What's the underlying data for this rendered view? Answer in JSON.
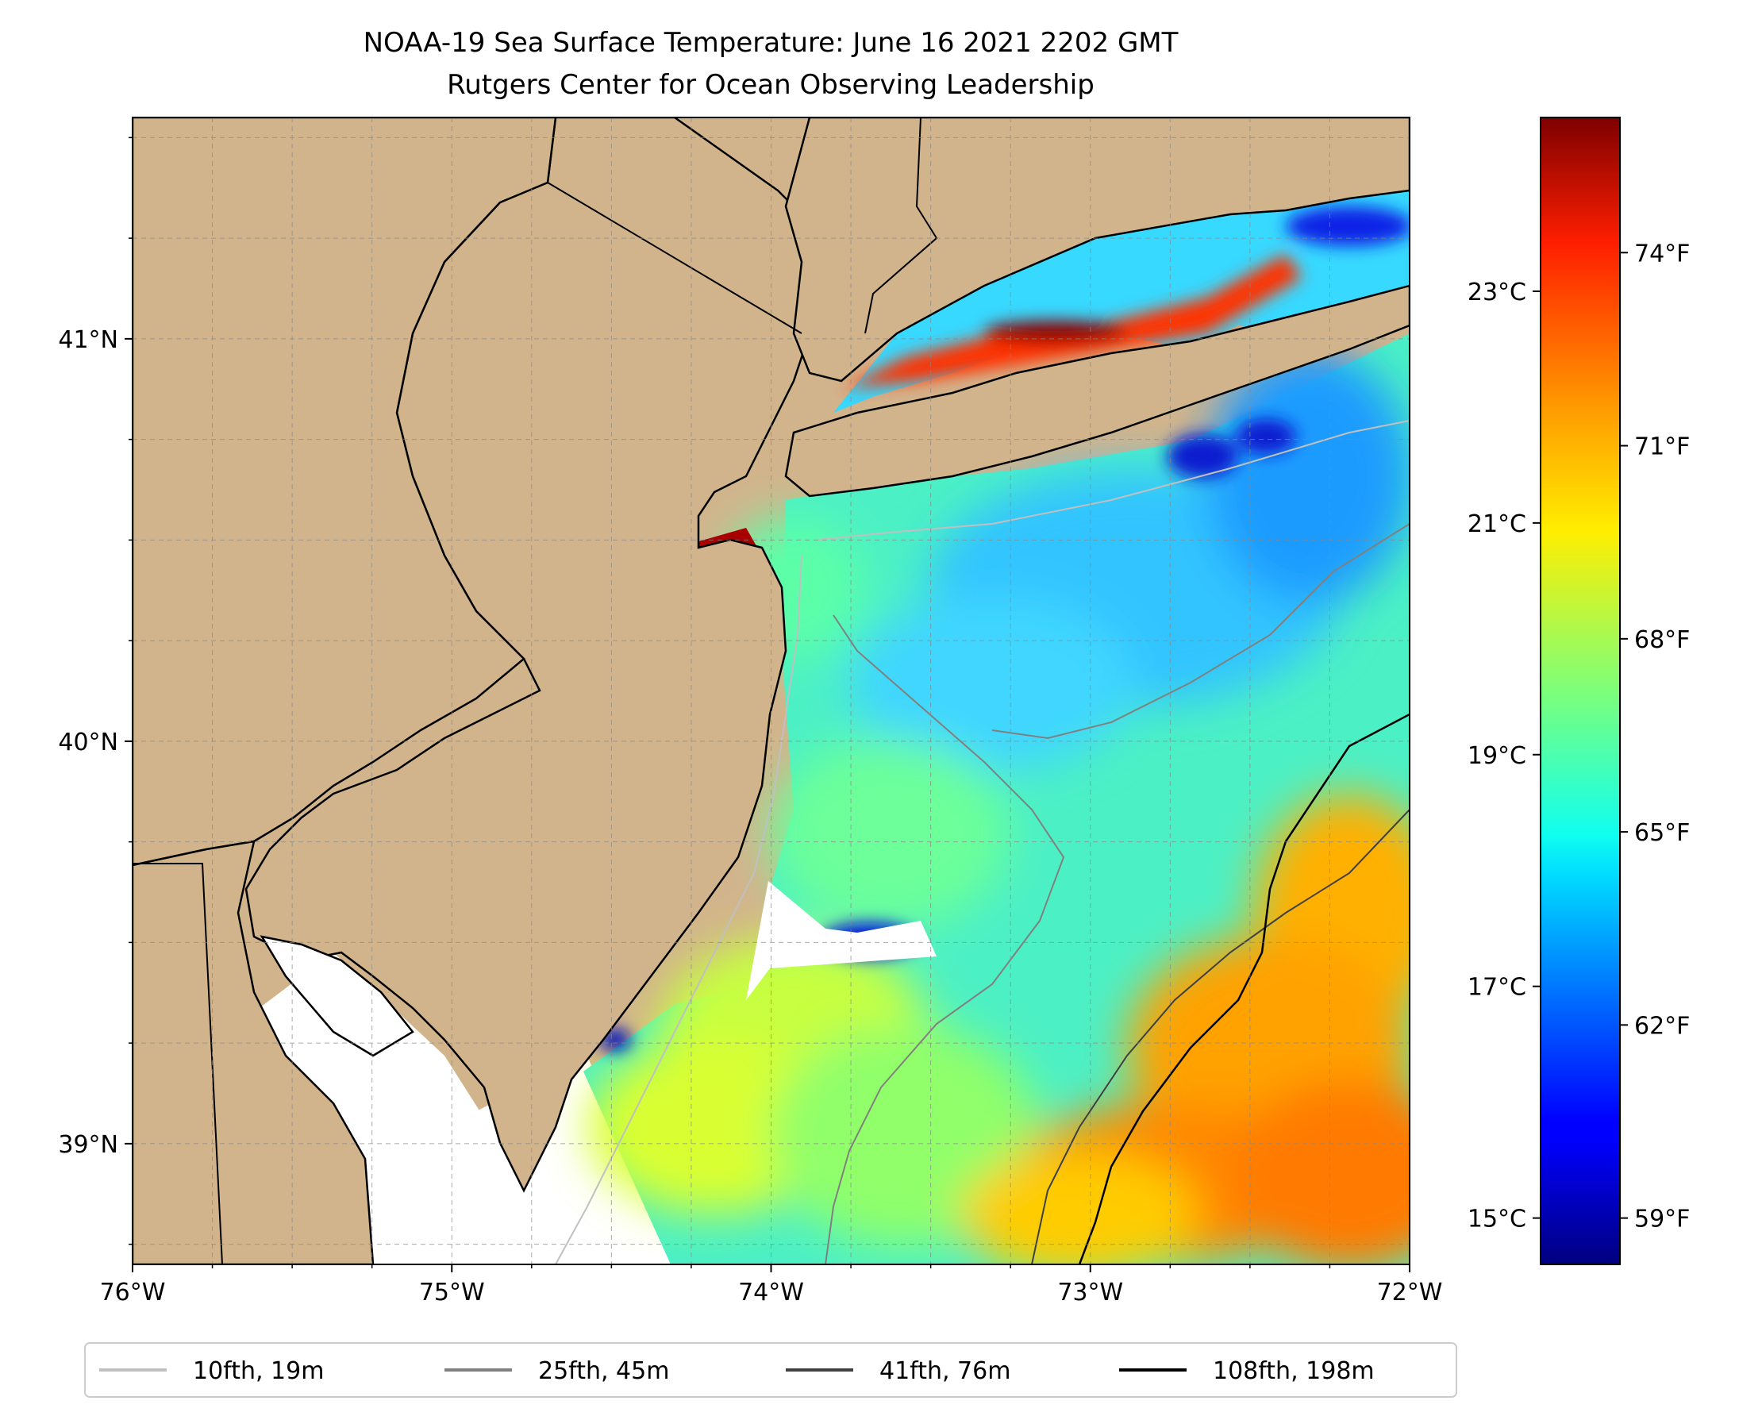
{
  "title": {
    "line1": "NOAA-19 Sea Surface Temperature: June 16 2021 2202 GMT",
    "line2": "Rutgers Center for Ocean Observing Leadership"
  },
  "map": {
    "lon_range": [
      -76,
      -72
    ],
    "lat_range": [
      38.7,
      41.55
    ],
    "grid": "dashed",
    "land_color": "#d2b48c",
    "no_data_color": "#ffffff",
    "x_ticks": [
      {
        "value": -76,
        "label": "76°W"
      },
      {
        "value": -75,
        "label": "75°W"
      },
      {
        "value": -74,
        "label": "74°W"
      },
      {
        "value": -73,
        "label": "73°W"
      },
      {
        "value": -72,
        "label": "72°W"
      }
    ],
    "y_ticks": [
      {
        "value": 41,
        "label": "41°N"
      },
      {
        "value": 40,
        "label": "40°N"
      },
      {
        "value": 39,
        "label": "39°N"
      }
    ]
  },
  "colorbar": {
    "colormap": "jet",
    "range_c": [
      14.6,
      24.5
    ],
    "celsius_ticks": [
      {
        "value": 15,
        "label": "15°C"
      },
      {
        "value": 17,
        "label": "17°C"
      },
      {
        "value": 19,
        "label": "19°C"
      },
      {
        "value": 21,
        "label": "21°C"
      },
      {
        "value": 23,
        "label": "23°C"
      }
    ],
    "fahrenheit_ticks": [
      {
        "value": 59,
        "label": "59°F"
      },
      {
        "value": 62,
        "label": "62°F"
      },
      {
        "value": 65,
        "label": "65°F"
      },
      {
        "value": 68,
        "label": "68°F"
      },
      {
        "value": 71,
        "label": "71°F"
      },
      {
        "value": 74,
        "label": "74°F"
      }
    ]
  },
  "legend": {
    "placement": "bottom-center",
    "entries": [
      {
        "label": "10fth, 19m",
        "color": "#c0c0c0"
      },
      {
        "label": "25fth, 45m",
        "color": "#808080"
      },
      {
        "label": "41fth, 76m",
        "color": "#404040"
      },
      {
        "label": "108fth, 198m",
        "color": "#000000"
      }
    ]
  }
}
